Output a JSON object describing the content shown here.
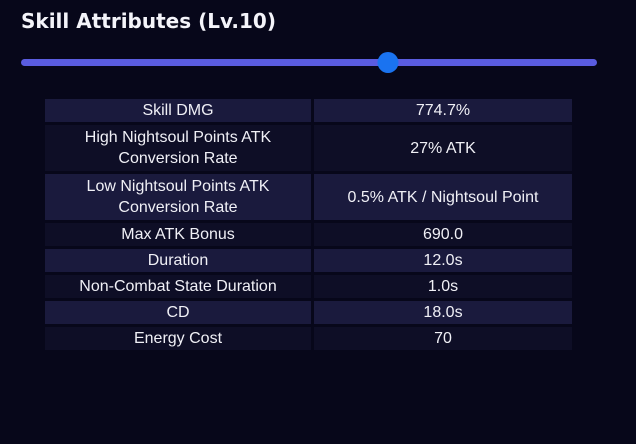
{
  "title": "Skill Attributes (Lv.10)",
  "level_slider": {
    "current": 10,
    "min": 1,
    "max": 15,
    "fill_fraction": 0.637,
    "track_color": "#5a5ce0",
    "thumb_color": "#1a73f0"
  },
  "attributes": [
    {
      "label": "Skill DMG",
      "value": "774.7%"
    },
    {
      "label": "High Nightsoul Points ATK Conversion Rate",
      "value": "27% ATK"
    },
    {
      "label": "Low Nightsoul Points ATK Conversion Rate",
      "value": "0.5% ATK / Nightsoul Point"
    },
    {
      "label": "Max ATK Bonus",
      "value": "690.0"
    },
    {
      "label": "Duration",
      "value": "12.0s"
    },
    {
      "label": "Non-Combat State Duration",
      "value": "1.0s"
    },
    {
      "label": "CD",
      "value": "18.0s"
    },
    {
      "label": "Energy Cost",
      "value": "70"
    }
  ]
}
